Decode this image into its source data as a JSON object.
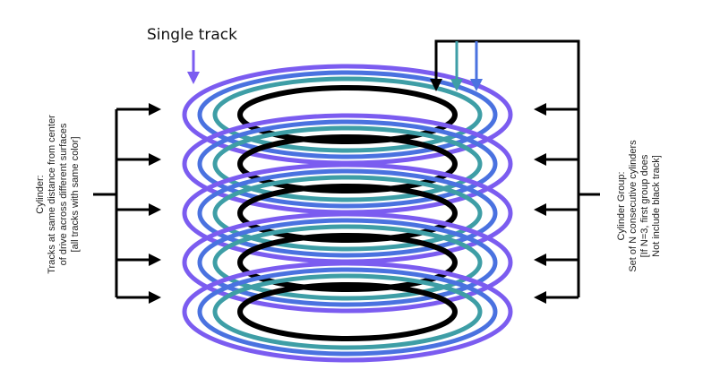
{
  "labels": {
    "single_track": "Single track",
    "cylinder": [
      "Cylinder:",
      "Tracks at same distance from center",
      "of drive across different surfaces",
      "[all tracks with same color]"
    ],
    "cylinder_group": [
      "Cylinder Group:",
      "Set of N consecutive cylinders",
      "[If N=3, first group does",
      "Not include black track]"
    ]
  },
  "colors": {
    "purple": "#7b5cf0",
    "blue": "#4a72e0",
    "teal": "#3e9ea6",
    "black": "#000000"
  },
  "platter_count": 5
}
